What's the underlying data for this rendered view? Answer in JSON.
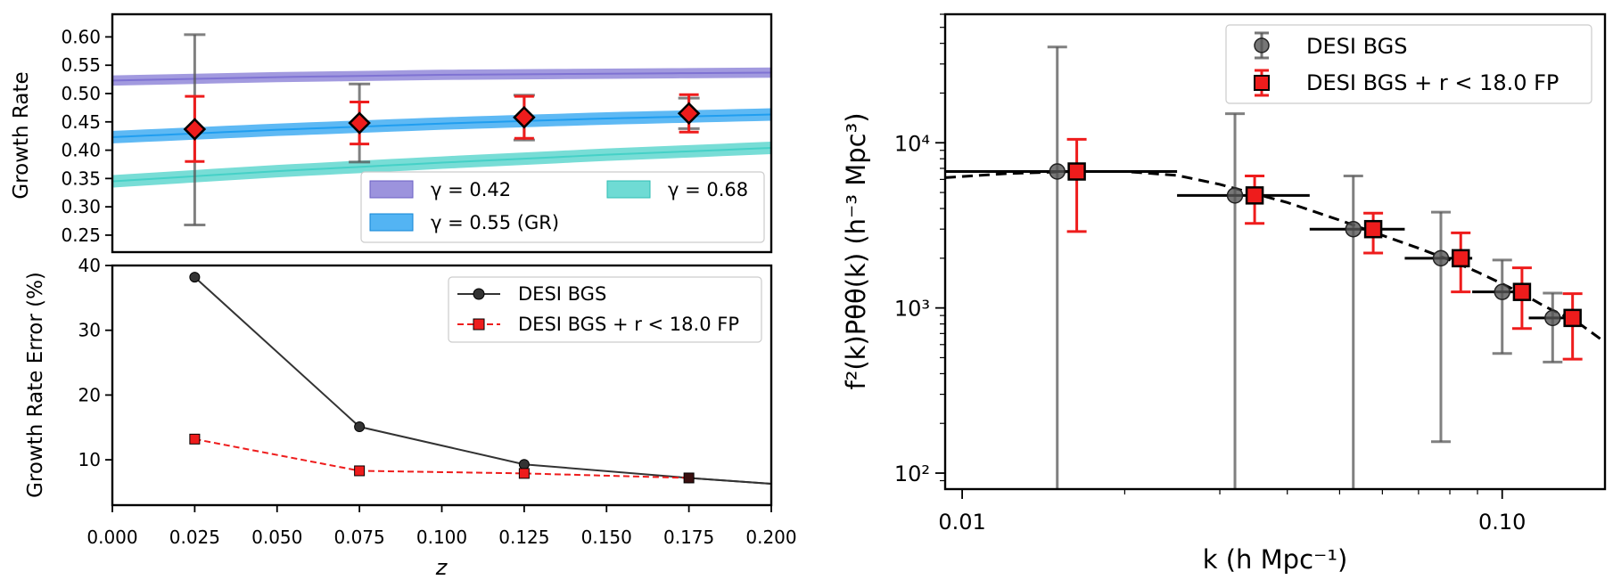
{
  "chart_data": [
    {
      "type": "scatter",
      "ylabel": "Growth Rate",
      "xlim": [
        0.0,
        0.2
      ],
      "ylim": [
        0.22,
        0.64
      ],
      "yticks": [
        "0.25",
        "0.30",
        "0.35",
        "0.40",
        "0.45",
        "0.50",
        "0.55",
        "0.60"
      ],
      "ytick_values": [
        0.25,
        0.3,
        0.35,
        0.4,
        0.45,
        0.5,
        0.55,
        0.6
      ],
      "x": [
        0.025,
        0.075,
        0.125,
        0.175
      ],
      "series": [
        {
          "name": "DESI BGS",
          "values": [
            0.437,
            0.448,
            0.458,
            0.465
          ],
          "err_low": [
            0.268,
            0.379,
            0.418,
            0.438
          ],
          "err_high": [
            0.604,
            0.517,
            0.497,
            0.492
          ],
          "color": "#555555"
        },
        {
          "name": "DESI BGS + r < 18.0 FP",
          "values": [
            0.437,
            0.448,
            0.458,
            0.465
          ],
          "err_low": [
            0.38,
            0.411,
            0.421,
            0.432
          ],
          "err_high": [
            0.495,
            0.485,
            0.495,
            0.498
          ],
          "color": "#ee1c1c"
        }
      ],
      "bands": [
        {
          "name": "γ = 0.42",
          "color": "#7b6fd1",
          "x": [
            0.0,
            0.05,
            0.1,
            0.15,
            0.2
          ],
          "center": [
            0.523,
            0.529,
            0.533,
            0.535,
            0.537
          ],
          "width": 0.018
        },
        {
          "name": "γ = 0.55 (GR)",
          "color": "#1a9bef",
          "x": [
            0.0,
            0.05,
            0.1,
            0.15,
            0.2
          ],
          "center": [
            0.423,
            0.436,
            0.447,
            0.456,
            0.463
          ],
          "width": 0.022
        },
        {
          "name": "γ = 0.68",
          "color": "#3fcfc5",
          "x": [
            0.0,
            0.05,
            0.1,
            0.15,
            0.2
          ],
          "center": [
            0.345,
            0.363,
            0.378,
            0.392,
            0.404
          ],
          "width": 0.022
        }
      ],
      "legend": {
        "placement": "lower-right",
        "labels": [
          "γ = 0.42",
          "γ = 0.55 (GR)",
          "γ = 0.68"
        ]
      },
      "grid": false
    },
    {
      "type": "line",
      "xlabel": "z",
      "ylabel": "Growth Rate Error (%)",
      "xlim": [
        0.0,
        0.2
      ],
      "ylim": [
        3,
        40
      ],
      "xticks": [
        "0.000",
        "0.025",
        "0.050",
        "0.075",
        "0.100",
        "0.125",
        "0.150",
        "0.175",
        "0.200"
      ],
      "xtick_values": [
        0.0,
        0.025,
        0.05,
        0.075,
        0.1,
        0.125,
        0.15,
        0.175,
        0.2
      ],
      "yticks": [
        "10",
        "20",
        "30",
        "40"
      ],
      "ytick_values": [
        10,
        20,
        30,
        40
      ],
      "series": [
        {
          "name": "DESI BGS",
          "x": [
            0.025,
            0.075,
            0.125,
            0.175
          ],
          "values": [
            38.2,
            15.1,
            9.3,
            7.2
          ],
          "extension": {
            "x": [
              0.175,
              0.2
            ],
            "values": [
              7.2,
              6.3
            ]
          },
          "color": "#333333",
          "marker": "circle",
          "dash": "solid"
        },
        {
          "name": "DESI BGS + r < 18.0 FP",
          "x": [
            0.025,
            0.075,
            0.125,
            0.175
          ],
          "values": [
            13.2,
            8.3,
            7.9,
            7.2
          ],
          "extension": {
            "x": [
              0.175,
              0.2
            ],
            "values": [
              7.2,
              6.3
            ]
          },
          "color": "#ee1c1c",
          "marker": "square",
          "dash": "dashed"
        }
      ],
      "legend": {
        "placement": "upper-right",
        "labels": [
          "DESI BGS",
          "DESI BGS + r < 18.0 FP"
        ]
      },
      "grid": false
    },
    {
      "type": "scatter",
      "xlabel": "k (h Mpc⁻¹)",
      "ylabel": "f²(k)Pθθ(k) (h⁻³ Mpc³)",
      "xscale": "log",
      "yscale": "log",
      "xlim": [
        0.0093,
        0.155
      ],
      "ylim": [
        80,
        60000
      ],
      "xticks": [
        "0.01",
        "0.10"
      ],
      "xtick_values": [
        0.01,
        0.1
      ],
      "yticks": [
        "10²",
        "10³",
        "10⁴"
      ],
      "ytick_values": [
        100,
        1000,
        10000
      ],
      "series": [
        {
          "name": "DESI BGS",
          "x": [
            0.015,
            0.032,
            0.053,
            0.077,
            0.1,
            0.124
          ],
          "values": [
            6700,
            4800,
            3000,
            2000,
            1250,
            870
          ],
          "err_low": [
            80,
            80,
            80,
            155,
            530,
            470
          ],
          "err_high": [
            38000,
            15000,
            6300,
            3800,
            1950,
            1230
          ],
          "xerr_low": [
            0.0093,
            0.025,
            0.044,
            0.066,
            0.088,
            0.112
          ],
          "xerr_high": [
            0.025,
            0.044,
            0.066,
            0.088,
            0.112,
            0.136
          ],
          "color": "#555555"
        },
        {
          "name": "DESI BGS + r < 18.0 FP",
          "x": [
            0.0163,
            0.0348,
            0.0577,
            0.0838,
            0.1088,
            0.135
          ],
          "values": [
            6700,
            4800,
            3000,
            2000,
            1250,
            870
          ],
          "err_low": [
            2900,
            3250,
            2150,
            1250,
            750,
            490
          ],
          "err_high": [
            10500,
            6300,
            3750,
            2850,
            1750,
            1220
          ],
          "color": "#ee1c1c"
        }
      ],
      "model_curve": {
        "x": [
          0.0093,
          0.012,
          0.016,
          0.02,
          0.025,
          0.03,
          0.04,
          0.05,
          0.06,
          0.07,
          0.08,
          0.09,
          0.1,
          0.11,
          0.12,
          0.13,
          0.14,
          0.155
        ],
        "values": [
          6150,
          6500,
          6700,
          6700,
          6350,
          5600,
          4350,
          3400,
          2750,
          2300,
          1950,
          1650,
          1400,
          1200,
          1020,
          900,
          790,
          620
        ],
        "dash": "dashed"
      },
      "legend": {
        "placement": "upper-right",
        "labels": [
          "DESI BGS",
          "DESI BGS + r < 18.0 FP"
        ]
      },
      "grid": false
    }
  ]
}
